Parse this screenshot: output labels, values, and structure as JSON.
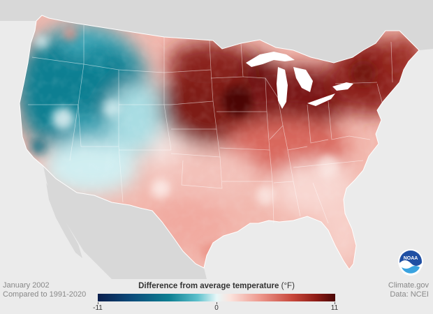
{
  "map": {
    "kind": "contiguous-us-temperature-anomaly",
    "date": "January 2002",
    "baseline": "Compared to 1991-2020",
    "colors": {
      "background": "#ebebeb",
      "land_neighbors": "#d8d8d8",
      "water": "#ffffff",
      "much_colder": "#0b4a7a",
      "colder": "#3aa6b7",
      "near_average": "#e6f7f8",
      "warmer": "#ee9a8f",
      "much_warmer": "#4a0707"
    }
  },
  "legend": {
    "title": "Difference from average temperature",
    "unit": "(°F)",
    "min_label": "-11",
    "mid_label": "0",
    "max_label": "11",
    "min": -11,
    "max": 11
  },
  "credits": {
    "source": "Climate.gov",
    "data": "Data: NCEI"
  },
  "logo": {
    "icon": "noaa-logo-icon",
    "text": "NOAA"
  }
}
